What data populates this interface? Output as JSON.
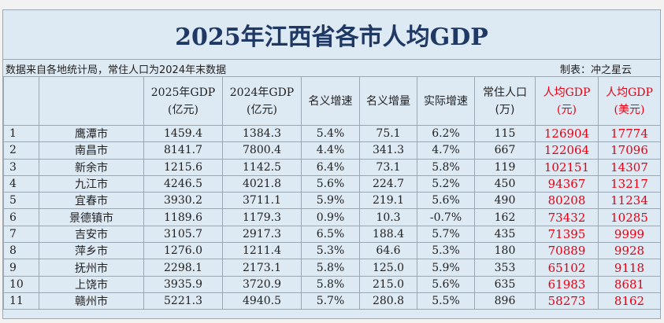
{
  "title": "2025年江西省各市人均GDP",
  "note": {
    "source": "数据来自各地统计局，常住人口为2024年末数据",
    "credit": "制表：冲之星云"
  },
  "headers": {
    "gdp2025_line1": "2025年GDP",
    "gdp2025_line2": "(亿元)",
    "gdp2024_line1": "2024年GDP",
    "gdp2024_line2": "(亿元)",
    "nominal_growth": "名义增速",
    "nominal_increase": "名义增量",
    "real_growth": "实际增速",
    "pop_line1": "常住人口",
    "pop_line2": "(万)",
    "pc_cny_line1": "人均GDP",
    "pc_cny_line2": "(元)",
    "pc_usd_line1": "人均GDP",
    "pc_usd_line2": "(美元)"
  },
  "accent_red": "#e60012",
  "title_color": "#1f3864",
  "rows": [
    {
      "rank": "1",
      "city": "鹰潭市",
      "gdp2025": "1459.4",
      "gdp2024": "1384.3",
      "nominal_growth": "5.4%",
      "nominal_increase": "75.1",
      "real_growth": "6.2%",
      "population": "115",
      "pc_cny": "126904",
      "pc_usd": "17774"
    },
    {
      "rank": "2",
      "city": "南昌市",
      "gdp2025": "8141.7",
      "gdp2024": "7800.4",
      "nominal_growth": "4.4%",
      "nominal_increase": "341.3",
      "real_growth": "4.7%",
      "population": "667",
      "pc_cny": "122064",
      "pc_usd": "17096"
    },
    {
      "rank": "3",
      "city": "新余市",
      "gdp2025": "1215.6",
      "gdp2024": "1142.5",
      "nominal_growth": "6.4%",
      "nominal_increase": "73.1",
      "real_growth": "5.8%",
      "population": "119",
      "pc_cny": "102151",
      "pc_usd": "14307"
    },
    {
      "rank": "4",
      "city": "九江市",
      "gdp2025": "4246.5",
      "gdp2024": "4021.8",
      "nominal_growth": "5.6%",
      "nominal_increase": "224.7",
      "real_growth": "5.2%",
      "population": "450",
      "pc_cny": "94367",
      "pc_usd": "13217"
    },
    {
      "rank": "5",
      "city": "宜春市",
      "gdp2025": "3930.2",
      "gdp2024": "3711.1",
      "nominal_growth": "5.9%",
      "nominal_increase": "219.1",
      "real_growth": "5.6%",
      "population": "490",
      "pc_cny": "80208",
      "pc_usd": "11234"
    },
    {
      "rank": "6",
      "city": "景德镇市",
      "gdp2025": "1189.6",
      "gdp2024": "1179.3",
      "nominal_growth": "0.9%",
      "nominal_increase": "10.3",
      "real_growth": "-0.7%",
      "population": "162",
      "pc_cny": "73432",
      "pc_usd": "10285"
    },
    {
      "rank": "7",
      "city": "吉安市",
      "gdp2025": "3105.7",
      "gdp2024": "2917.3",
      "nominal_growth": "6.5%",
      "nominal_increase": "188.4",
      "real_growth": "5.7%",
      "population": "435",
      "pc_cny": "71395",
      "pc_usd": "9999"
    },
    {
      "rank": "8",
      "city": "萍乡市",
      "gdp2025": "1276.0",
      "gdp2024": "1211.4",
      "nominal_growth": "5.3%",
      "nominal_increase": "64.6",
      "real_growth": "5.3%",
      "population": "180",
      "pc_cny": "70889",
      "pc_usd": "9928"
    },
    {
      "rank": "9",
      "city": "抚州市",
      "gdp2025": "2298.1",
      "gdp2024": "2173.1",
      "nominal_growth": "5.8%",
      "nominal_increase": "125.0",
      "real_growth": "5.9%",
      "population": "353",
      "pc_cny": "65102",
      "pc_usd": "9118"
    },
    {
      "rank": "10",
      "city": "上饶市",
      "gdp2025": "3935.9",
      "gdp2024": "3720.9",
      "nominal_growth": "5.8%",
      "nominal_increase": "215.0",
      "real_growth": "5.6%",
      "population": "635",
      "pc_cny": "61983",
      "pc_usd": "8681"
    },
    {
      "rank": "11",
      "city": "赣州市",
      "gdp2025": "5221.3",
      "gdp2024": "4940.5",
      "nominal_growth": "5.7%",
      "nominal_increase": "280.8",
      "real_growth": "5.5%",
      "population": "896",
      "pc_cny": "58273",
      "pc_usd": "8162"
    }
  ]
}
